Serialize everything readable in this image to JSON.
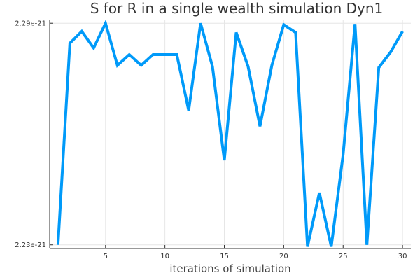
{
  "chart_data": {
    "type": "line",
    "title": "S for R in a single wealth simulation Dyn1",
    "xlabel": "iterations of simulation",
    "ylabel": "",
    "xlim": [
      0.3,
      30.7
    ],
    "ylim": [
      2.229e-21,
      2.2908e-21
    ],
    "x_ticks": [
      5,
      10,
      15,
      20,
      25,
      30
    ],
    "x_tick_labels": [
      "5",
      "10",
      "15",
      "20",
      "25",
      "30"
    ],
    "y_ticks": [
      2.23e-21,
      2.29e-21
    ],
    "y_tick_labels": [
      "2.23e-21",
      "2.29e-21"
    ],
    "grid": true,
    "legend": "none",
    "series": [
      {
        "color": "#009af9",
        "x": [
          1,
          2,
          3,
          4,
          5,
          6,
          7,
          8,
          9,
          10,
          11,
          12,
          13,
          14,
          15,
          16,
          17,
          18,
          19,
          20,
          21,
          22,
          23,
          24,
          25,
          26,
          27,
          28,
          29,
          30
        ],
        "y": [
          2.23e-21,
          2.2846e-21,
          2.2878e-21,
          2.2833e-21,
          2.29e-21,
          2.2786e-21,
          2.2815e-21,
          2.2786e-21,
          2.2815e-21,
          2.2815e-21,
          2.2815e-21,
          2.2664e-21,
          2.29e-21,
          2.2783e-21,
          2.2529e-21,
          2.2875e-21,
          2.2783e-21,
          2.2621e-21,
          2.2786e-21,
          2.2896e-21,
          2.2875e-21,
          2.2295e-21,
          2.2441e-21,
          2.2295e-21,
          2.2545e-21,
          2.2898e-21,
          2.23e-21,
          2.278e-21,
          2.2822e-21,
          2.2878e-21
        ]
      }
    ]
  }
}
